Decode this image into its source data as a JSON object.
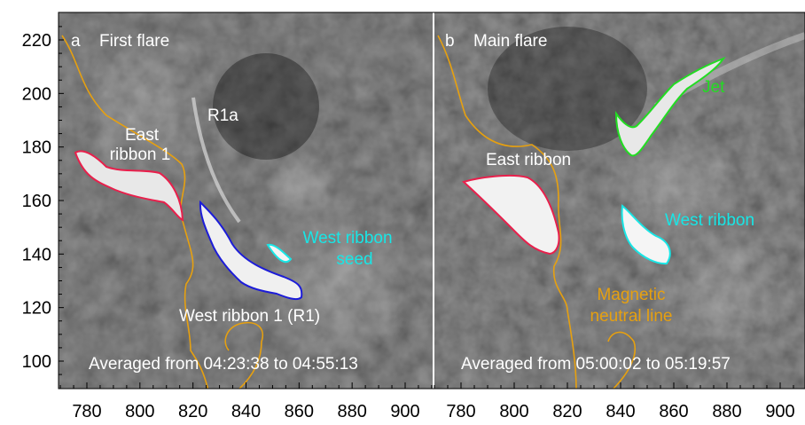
{
  "figure": {
    "y_axis_ticks": [
      "100",
      "120",
      "140",
      "160",
      "180",
      "200",
      "220"
    ],
    "x_axis_ticks_a": [
      "780",
      "800",
      "820",
      "840",
      "860",
      "880",
      "900"
    ],
    "x_axis_ticks_b": [
      "780",
      "800",
      "820",
      "840",
      "860",
      "880",
      "900"
    ],
    "panels": [
      {
        "letter": "a",
        "title": "First flare",
        "averaged": "Averaged from 04:23:38 to 04:55:13",
        "labels": {
          "east_ribbon_line1": "East",
          "east_ribbon_line2": "ribbon 1",
          "r1a": "R1a",
          "west_seed_line1": "West ribbon",
          "west_seed_line2": "seed",
          "west_ribbon": "West ribbon 1 (R1)"
        }
      },
      {
        "letter": "b",
        "title": "Main flare",
        "averaged": "Averaged from 05:00:02 to 05:19:57",
        "labels": {
          "jet": "Jet",
          "east_ribbon": "East ribbon",
          "west_ribbon": "West ribbon",
          "neutral_line1": "Magnetic",
          "neutral_line2": "neutral line"
        }
      }
    ],
    "colors": {
      "east_ribbon": "#e8204c",
      "west_ribbon_1": "#1c1cd8",
      "west_seed": "#18e6e6",
      "jet": "#22dd22",
      "neutral_line": "#e6a010",
      "background": "#2a2a2a"
    }
  }
}
